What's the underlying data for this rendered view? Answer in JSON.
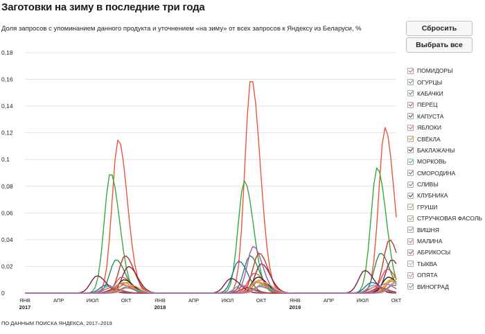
{
  "header": {
    "title": "Заготовки на зиму в последние три года",
    "subtitle": "Доля запросов с упоминанием данного продукта и уточнением «на зиму» от всех запросов к Яндексу из Беларуси, %"
  },
  "controls": {
    "reset_label": "Сбросить",
    "select_all_label": "Выбрать все"
  },
  "footer": {
    "source": "ПО ДАННЫМ ПОИСКА ЯНДЕКСА, 2017–2019"
  },
  "chart_data": {
    "type": "line",
    "x_ticks": [
      {
        "label": "ЯНВ",
        "year": "2017",
        "x": 0
      },
      {
        "label": "АПР",
        "x": 3
      },
      {
        "label": "ИЮЛ",
        "x": 6
      },
      {
        "label": "ОКТ",
        "x": 9
      },
      {
        "label": "ЯНВ",
        "year": "2018",
        "x": 12
      },
      {
        "label": "АПР",
        "x": 15
      },
      {
        "label": "ИЮЛ",
        "x": 18
      },
      {
        "label": "ОКТ",
        "x": 21
      },
      {
        "label": "ЯНВ",
        "year": "2019",
        "x": 24
      },
      {
        "label": "АПР",
        "x": 27
      },
      {
        "label": "ИЮЛ",
        "x": 30
      },
      {
        "label": "ОКТ",
        "x": 33
      }
    ],
    "xlim": [
      0,
      33
    ],
    "ylim": [
      0,
      0.18
    ],
    "y_ticks": [
      {
        "value": 0,
        "label": "0"
      },
      {
        "value": 0.02,
        "label": "0,02"
      },
      {
        "value": 0.04,
        "label": "0,04"
      },
      {
        "value": 0.06,
        "label": "0,06"
      },
      {
        "value": 0.08,
        "label": "0,08"
      },
      {
        "value": 0.1,
        "label": "0,1"
      },
      {
        "value": 0.12,
        "label": "0,12"
      },
      {
        "value": 0.14,
        "label": "0,14"
      },
      {
        "value": 0.16,
        "label": "0,16"
      },
      {
        "value": 0.18,
        "label": "0,18"
      }
    ],
    "grid": true,
    "legend_position": "right",
    "series": [
      {
        "name": "ПОМИДОРЫ",
        "color": "#e8553a",
        "peaks": [
          [
            8.3,
            0.115
          ],
          [
            20.1,
            0.161
          ],
          [
            32.0,
            0.124
          ]
        ]
      },
      {
        "name": "ОГУРЦЫ",
        "color": "#3aa63a",
        "peaks": [
          [
            7.6,
            0.09
          ],
          [
            19.5,
            0.084
          ],
          [
            31.3,
            0.094
          ]
        ]
      },
      {
        "name": "КАБАЧКИ",
        "color": "#2e8b57",
        "peaks": [
          [
            8.1,
            0.025
          ],
          [
            20.0,
            0.028
          ],
          [
            31.6,
            0.03
          ]
        ]
      },
      {
        "name": "ПЕРЕЦ",
        "color": "#c0392b",
        "peaks": [
          [
            8.9,
            0.028
          ],
          [
            20.8,
            0.03
          ],
          [
            32.4,
            0.04
          ]
        ]
      },
      {
        "name": "КАПУСТА",
        "color": "#8e2440",
        "peaks": [
          [
            9.2,
            0.02
          ],
          [
            21.0,
            0.022
          ],
          [
            32.6,
            0.025
          ]
        ]
      },
      {
        "name": "ЯБЛОКИ",
        "color": "#e74c3c",
        "peaks": [
          [
            8.6,
            0.012
          ],
          [
            20.4,
            0.015
          ],
          [
            32.2,
            0.018
          ]
        ]
      },
      {
        "name": "СВЁКЛА",
        "color": "#e67e22",
        "peaks": [
          [
            9.0,
            0.008
          ],
          [
            20.9,
            0.01
          ],
          [
            32.8,
            0.012
          ]
        ]
      },
      {
        "name": "БАКЛАЖАНЫ",
        "color": "#222222",
        "peaks": [
          [
            8.8,
            0.01
          ],
          [
            20.7,
            0.012
          ],
          [
            32.3,
            0.012
          ]
        ]
      },
      {
        "name": "МОРКОВЬ",
        "color": "#1abc9c",
        "peaks": [
          [
            9.1,
            0.005
          ],
          [
            21.0,
            0.006
          ],
          [
            32.9,
            0.008
          ]
        ]
      },
      {
        "name": "СМОРОДИНА",
        "color": "#2c6e8a",
        "peaks": [
          [
            7.2,
            0.006
          ],
          [
            19.0,
            0.024
          ],
          [
            30.8,
            0.008
          ]
        ]
      },
      {
        "name": "СЛИВЫ",
        "color": "#9b59b6",
        "peaks": [
          [
            8.5,
            0.007
          ],
          [
            20.3,
            0.035
          ],
          [
            32.0,
            0.007
          ]
        ]
      },
      {
        "name": "КЛУБНИКА",
        "color": "#7b1c3c",
        "peaks": [
          [
            6.4,
            0.013
          ],
          [
            18.3,
            0.011
          ],
          [
            30.2,
            0.017
          ]
        ]
      },
      {
        "name": "ГРУШИ",
        "color": "#d4a017",
        "peaks": [
          [
            8.7,
            0.008
          ],
          [
            20.6,
            0.009
          ],
          [
            32.5,
            0.01
          ]
        ]
      },
      {
        "name": "СТРУЧКОВАЯ ФАСОЛЬ",
        "color": "#8ab833",
        "peaks": [
          [
            8.9,
            0.004
          ],
          [
            20.8,
            0.005
          ],
          [
            32.7,
            0.006
          ]
        ]
      },
      {
        "name": "ВИШНЯ",
        "color": "#5ba3b0",
        "peaks": [
          [
            7.4,
            0.005
          ],
          [
            19.2,
            0.006
          ],
          [
            31.0,
            0.006
          ]
        ]
      },
      {
        "name": "МАЛИНА",
        "color": "#e05575",
        "peaks": [
          [
            7.6,
            0.004
          ],
          [
            19.4,
            0.005
          ],
          [
            31.2,
            0.005
          ]
        ]
      },
      {
        "name": "АБРИКОСЫ",
        "color": "#b03a2e",
        "peaks": [
          [
            7.9,
            0.003
          ],
          [
            19.7,
            0.004
          ],
          [
            31.5,
            0.004
          ]
        ]
      },
      {
        "name": "ТЫКВА",
        "color": "#e6a07a",
        "peaks": [
          [
            9.4,
            0.006
          ],
          [
            21.2,
            0.008
          ],
          [
            33.0,
            0.008
          ]
        ]
      },
      {
        "name": "ОПЯТА",
        "color": "#e07b5f",
        "peaks": [
          [
            8.8,
            0.006
          ],
          [
            20.6,
            0.008
          ],
          [
            32.6,
            0.009
          ]
        ]
      },
      {
        "name": "ВИНОГРАД",
        "color": "#a569bd",
        "peaks": [
          [
            9.0,
            0.004
          ],
          [
            20.9,
            0.005
          ],
          [
            32.8,
            0.006
          ]
        ]
      }
    ]
  }
}
